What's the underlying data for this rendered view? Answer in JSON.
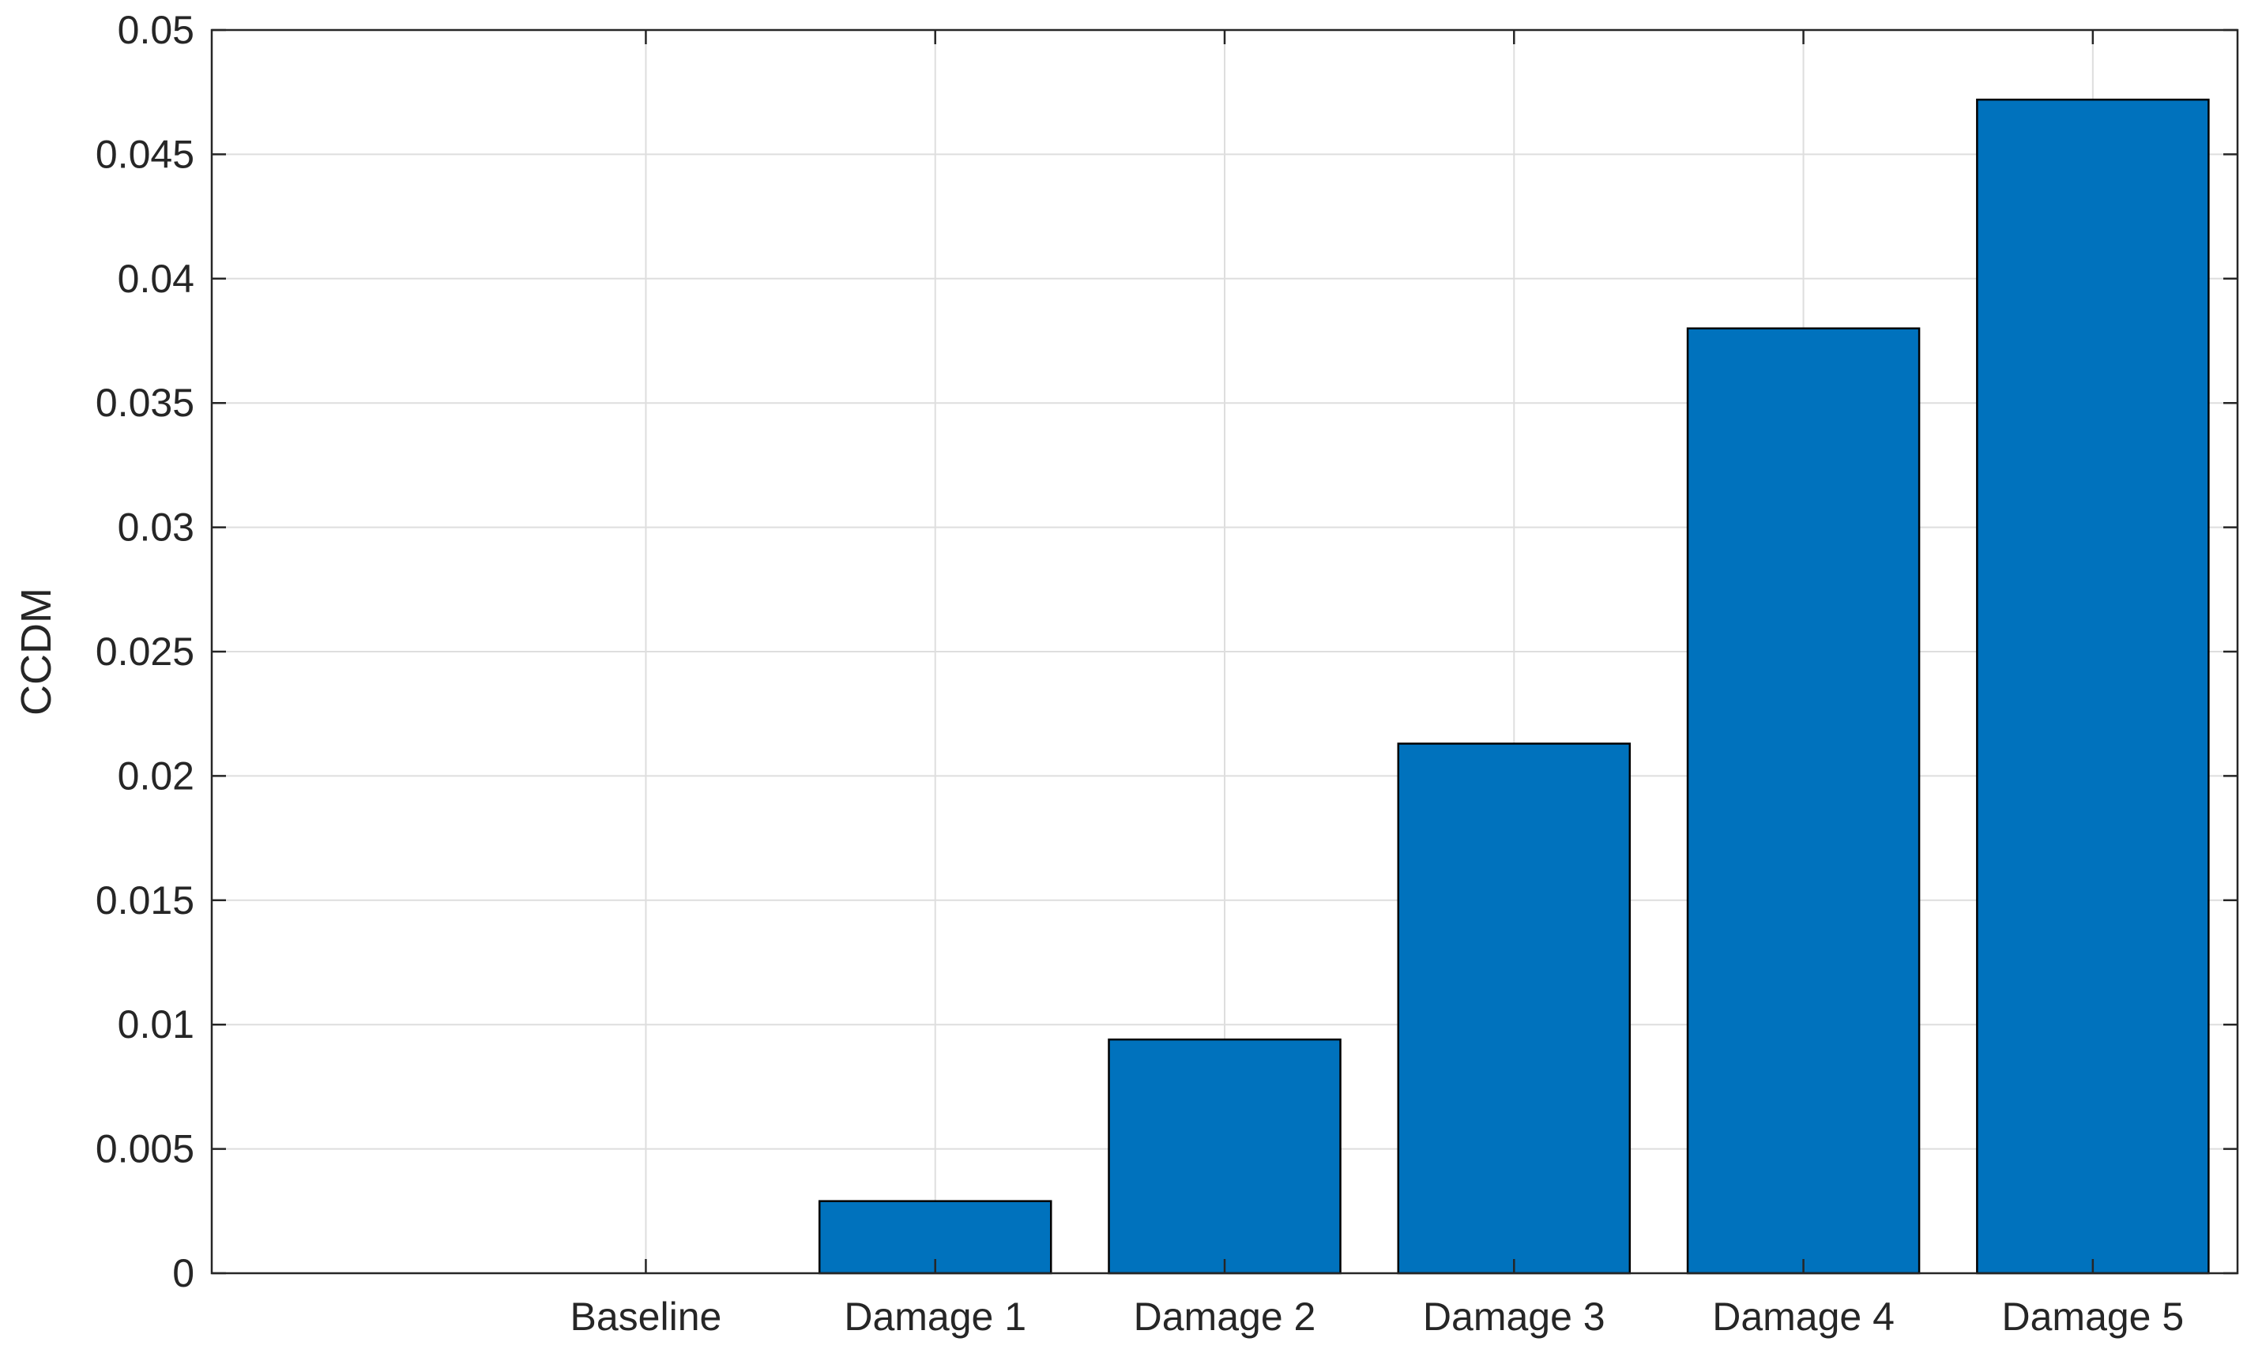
{
  "chart_data": {
    "type": "bar",
    "categories": [
      "Baseline",
      "Damage 1",
      "Damage 2",
      "Damage 3",
      "Damage 4",
      "Damage 5"
    ],
    "series": [
      {
        "values": [
          0,
          0.0029,
          0.0094,
          0.0213,
          0.038,
          0.0472
        ]
      }
    ],
    "title": "",
    "xlabel": "",
    "ylabel": "CCDM",
    "ylim": [
      0,
      0.05
    ],
    "xlim": [
      -0.5,
      6.5
    ],
    "yticks": [
      0,
      0.005,
      0.01,
      0.015,
      0.02,
      0.025,
      0.03,
      0.035,
      0.04,
      0.045,
      0.05
    ],
    "ytick_labels": [
      "0",
      "0.005",
      "0.01",
      "0.015",
      "0.02",
      "0.025",
      "0.03",
      "0.035",
      "0.04",
      "0.045",
      "0.05"
    ],
    "grid": true,
    "bar_color": "#0072bd",
    "edge_color": "#000000",
    "background": "#ffffff"
  }
}
